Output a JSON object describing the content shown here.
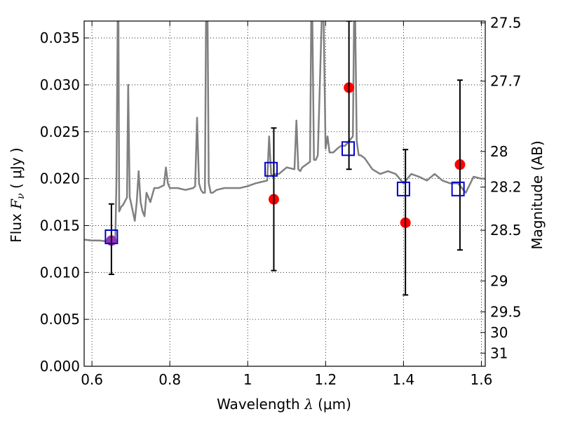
{
  "chart_data": {
    "type": "scatter",
    "title": "",
    "xlabel": {
      "prefix": "Wavelength  ",
      "symbol": "λ",
      "suffix": " (μm)"
    },
    "ylabel": {
      "prefix": "Flux  ",
      "symbol": "F",
      "subscript": "ν",
      "suffix": "  ( μJy )"
    },
    "y2label": "Magnitude (AB)",
    "xlim": [
      0.58,
      1.61
    ],
    "ylim": [
      0.0,
      0.0368
    ],
    "grid": true,
    "grid_style": "dotted",
    "xticks": [
      0.6,
      0.8,
      1.0,
      1.2,
      1.4,
      1.6
    ],
    "xtick_labels": [
      "0.6",
      "0.8",
      "1",
      "1.2",
      "1.4",
      "1.6"
    ],
    "yticks": [
      0.0,
      0.005,
      0.01,
      0.015,
      0.02,
      0.025,
      0.03,
      0.035
    ],
    "ytick_labels": [
      "0.000",
      "0.005",
      "0.010",
      "0.015",
      "0.020",
      "0.025",
      "0.030",
      "0.035"
    ],
    "y2ticks": [
      {
        "label": "27.5",
        "flux": 0.0366
      },
      {
        "label": "27.7",
        "flux": 0.0304
      },
      {
        "label": "28",
        "flux": 0.0229
      },
      {
        "label": "28.2",
        "flux": 0.0191
      },
      {
        "label": "28.5",
        "flux": 0.0145
      },
      {
        "label": "29",
        "flux": 0.0091
      },
      {
        "label": "29.5",
        "flux": 0.0058
      },
      {
        "label": "30",
        "flux": 0.0036
      },
      {
        "label": "31",
        "flux": 0.0014
      }
    ],
    "series": [
      {
        "kind": "line",
        "color": "#808080",
        "x": [
          0.58,
          0.6,
          0.62,
          0.64,
          0.65,
          0.655,
          0.66,
          0.663,
          0.666,
          0.668,
          0.67,
          0.675,
          0.68,
          0.69,
          0.693,
          0.697,
          0.7,
          0.71,
          0.715,
          0.72,
          0.725,
          0.73,
          0.735,
          0.74,
          0.75,
          0.76,
          0.77,
          0.78,
          0.785,
          0.79,
          0.795,
          0.8,
          0.81,
          0.82,
          0.84,
          0.86,
          0.865,
          0.87,
          0.875,
          0.88,
          0.885,
          0.89,
          0.893,
          0.897,
          0.9,
          0.905,
          0.91,
          0.92,
          0.94,
          0.96,
          0.98,
          1.0,
          1.02,
          1.04,
          1.05,
          1.055,
          1.06,
          1.065,
          1.07,
          1.08,
          1.1,
          1.12,
          1.125,
          1.13,
          1.135,
          1.14,
          1.15,
          1.16,
          1.163,
          1.166,
          1.17,
          1.175,
          1.18,
          1.19,
          1.195,
          1.2,
          1.205,
          1.21,
          1.22,
          1.23,
          1.24,
          1.25,
          1.26,
          1.27,
          1.273,
          1.276,
          1.28,
          1.285,
          1.29,
          1.3,
          1.32,
          1.34,
          1.36,
          1.38,
          1.4,
          1.42,
          1.44,
          1.46,
          1.48,
          1.5,
          1.52,
          1.54,
          1.56,
          1.58,
          1.6,
          1.61
        ],
        "y": [
          0.0135,
          0.0134,
          0.0134,
          0.0133,
          0.0132,
          0.013,
          0.0132,
          0.02,
          0.037,
          0.037,
          0.0165,
          0.017,
          0.0172,
          0.018,
          0.03,
          0.018,
          0.0175,
          0.0155,
          0.0175,
          0.0208,
          0.0175,
          0.0165,
          0.016,
          0.0185,
          0.0175,
          0.019,
          0.019,
          0.0192,
          0.0193,
          0.0212,
          0.0195,
          0.019,
          0.019,
          0.019,
          0.0188,
          0.019,
          0.0192,
          0.0265,
          0.0195,
          0.0188,
          0.0185,
          0.0185,
          0.037,
          0.037,
          0.0195,
          0.0185,
          0.0185,
          0.0188,
          0.019,
          0.019,
          0.019,
          0.0192,
          0.0195,
          0.0197,
          0.0198,
          0.0245,
          0.0205,
          0.0202,
          0.0205,
          0.0205,
          0.0212,
          0.021,
          0.0262,
          0.021,
          0.0208,
          0.0212,
          0.0215,
          0.0218,
          0.037,
          0.037,
          0.022,
          0.022,
          0.0225,
          0.037,
          0.037,
          0.0232,
          0.0245,
          0.0228,
          0.0228,
          0.0232,
          0.0235,
          0.0235,
          0.024,
          0.0245,
          0.037,
          0.037,
          0.024,
          0.0225,
          0.0225,
          0.0222,
          0.021,
          0.0205,
          0.0208,
          0.0205,
          0.0195,
          0.0205,
          0.0202,
          0.0198,
          0.0205,
          0.0198,
          0.0195,
          0.0195,
          0.0185,
          0.0202,
          0.02,
          0.02
        ]
      },
      {
        "kind": "points",
        "marker": "circle",
        "color": "#ff0000",
        "points": [
          {
            "x": 1.067,
            "y": 0.0178
          },
          {
            "x": 1.26,
            "y": 0.0297
          },
          {
            "x": 1.405,
            "y": 0.0153
          },
          {
            "x": 1.545,
            "y": 0.0215
          }
        ]
      },
      {
        "kind": "points",
        "marker": "circle",
        "color": "#9b30b0",
        "points": [
          {
            "x": 0.65,
            "y": 0.0134
          }
        ]
      },
      {
        "kind": "errorbars",
        "color": "#000000",
        "bars": [
          {
            "x": 0.65,
            "low": 0.0098,
            "high": 0.0173
          },
          {
            "x": 1.067,
            "low": 0.0102,
            "high": 0.0254
          },
          {
            "x": 1.26,
            "low": 0.021,
            "high": 0.0368
          },
          {
            "x": 1.405,
            "low": 0.0076,
            "high": 0.0231
          },
          {
            "x": 1.545,
            "low": 0.0124,
            "high": 0.0305
          }
        ]
      },
      {
        "kind": "points",
        "marker": "open-square",
        "color": "#0000cc",
        "points": [
          {
            "x": 0.65,
            "y": 0.0138
          },
          {
            "x": 1.06,
            "y": 0.021
          },
          {
            "x": 1.258,
            "y": 0.0232
          },
          {
            "x": 1.4,
            "y": 0.0189
          },
          {
            "x": 1.54,
            "y": 0.0189
          }
        ]
      }
    ]
  }
}
